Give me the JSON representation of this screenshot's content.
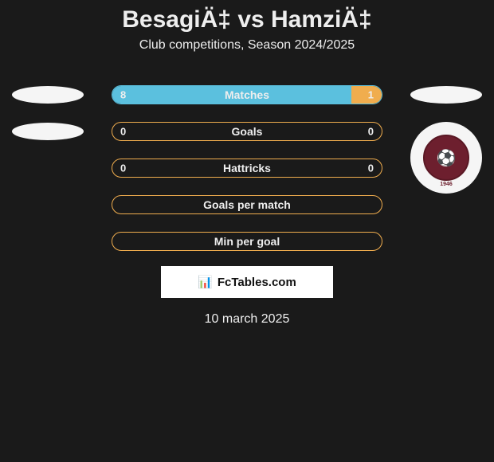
{
  "title": "BesagiÄ‡ vs HamziÄ‡",
  "subtitle": "Club competitions, Season 2024/2025",
  "date": "10 march 2025",
  "attribution": {
    "icon": "📊",
    "text": "FcTables.com"
  },
  "left_player": {
    "avatar_type": "ellipse"
  },
  "right_player": {
    "avatar_type": "club-badge",
    "badge_color": "#6d1f2e",
    "badge_top_text": "FK SARAJEVO",
    "badge_year": "1946"
  },
  "colors": {
    "left_fill": "#5bc0de",
    "right_fill": "#f0ad4e",
    "border_blue": "#5bc0de",
    "border_orange": "#f0ad4e",
    "background": "#1a1a1a"
  },
  "bars": [
    {
      "label": "Matches",
      "left_val": "8",
      "right_val": "1",
      "left_pct": 88.9,
      "right_pct": 11.1,
      "left_color": "#5bc0de",
      "right_color": "#f0ad4e",
      "border_color": "#5bc0de",
      "show_vals": true,
      "show_avatar_left": "ellipse",
      "show_avatar_right": "ellipse"
    },
    {
      "label": "Goals",
      "left_val": "0",
      "right_val": "0",
      "left_pct": 0,
      "right_pct": 0,
      "left_color": "#5bc0de",
      "right_color": "#f0ad4e",
      "border_color": "#f0ad4e",
      "show_vals": true,
      "show_avatar_left": "ellipse",
      "show_avatar_right": "none"
    },
    {
      "label": "Hattricks",
      "left_val": "0",
      "right_val": "0",
      "left_pct": 0,
      "right_pct": 0,
      "left_color": "#5bc0de",
      "right_color": "#f0ad4e",
      "border_color": "#f0ad4e",
      "show_vals": true,
      "show_avatar_left": "none",
      "show_avatar_right": "badge"
    },
    {
      "label": "Goals per match",
      "left_val": "",
      "right_val": "",
      "left_pct": 0,
      "right_pct": 0,
      "left_color": "#5bc0de",
      "right_color": "#f0ad4e",
      "border_color": "#f0ad4e",
      "show_vals": false,
      "show_avatar_left": "none",
      "show_avatar_right": "none"
    },
    {
      "label": "Min per goal",
      "left_val": "",
      "right_val": "",
      "left_pct": 0,
      "right_pct": 0,
      "left_color": "#5bc0de",
      "right_color": "#f0ad4e",
      "border_color": "#f0ad4e",
      "show_vals": false,
      "show_avatar_left": "none",
      "show_avatar_right": "none"
    }
  ]
}
